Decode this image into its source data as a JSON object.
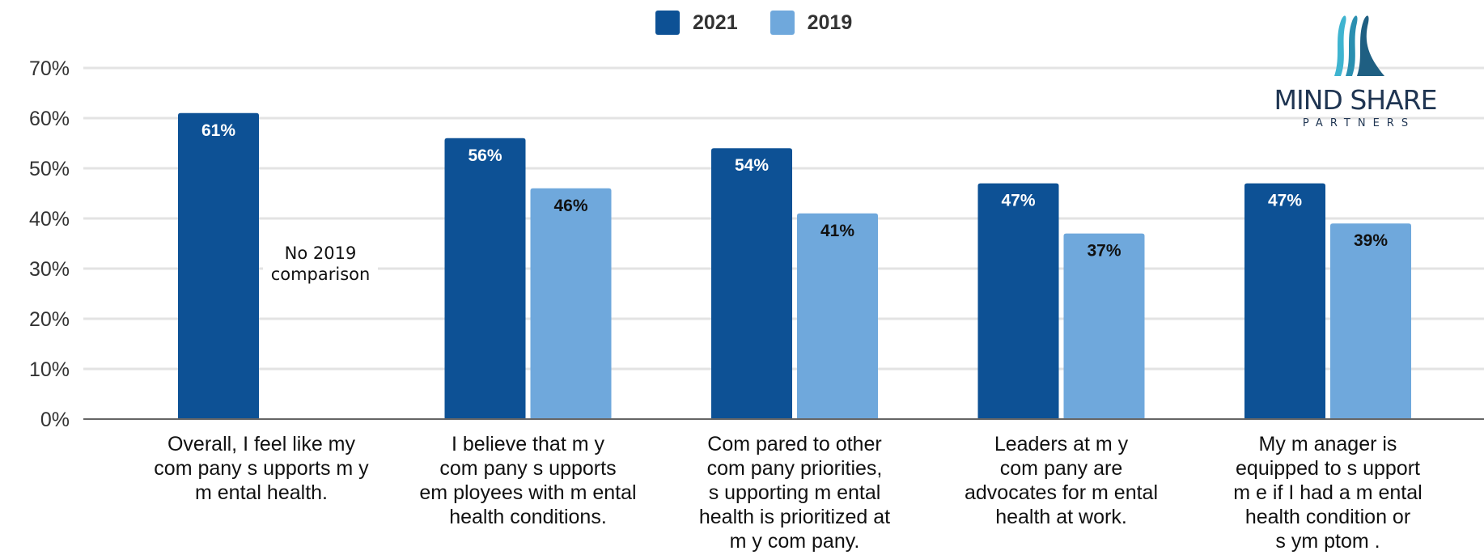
{
  "legend": [
    {
      "name": "2021",
      "color": "#0d5195"
    },
    {
      "name": "2019",
      "color": "#6fa8dc"
    }
  ],
  "logo": {
    "text_main": "MIND SHARE",
    "text_sub": "PARTNERS"
  },
  "annotation": {
    "line1": "No 2019",
    "line2": "comparison"
  },
  "chart_data": {
    "type": "bar",
    "title": "",
    "xlabel": "",
    "ylabel": "",
    "ylim": [
      0,
      70
    ],
    "yticks": [
      "0%",
      "10%",
      "20%",
      "30%",
      "40%",
      "50%",
      "60%",
      "70%"
    ],
    "grid": true,
    "legend_position": "top",
    "categories": [
      [
        "Overall, I feel like my",
        "com pany s upports m y",
        "m ental health."
      ],
      [
        "I believe that m y",
        "com pany s upports",
        "em ployees with m ental",
        "health conditions."
      ],
      [
        "Com pared to other",
        "com pany priorities,",
        "s upporting m ental",
        "health is prioritized at",
        "m y com pany."
      ],
      [
        "Leaders at m y",
        "com pany are",
        "advocates for m ental",
        "health at work."
      ],
      [
        "My m anager is",
        "equipped to s upport",
        "m e if I had a m ental",
        "health condition or",
        "s ym ptom ."
      ]
    ],
    "series": [
      {
        "name": "2021",
        "color": "#0d5195",
        "label_color": "#ffffff",
        "values": [
          61,
          56,
          54,
          47,
          47
        ],
        "labels": [
          "61%",
          "56%",
          "54%",
          "47%",
          "47%"
        ]
      },
      {
        "name": "2019",
        "color": "#6fa8dc",
        "label_color": "#111111",
        "values": [
          null,
          46,
          41,
          37,
          39
        ],
        "labels": [
          "",
          "46%",
          "41%",
          "37%",
          "39%"
        ]
      }
    ]
  }
}
